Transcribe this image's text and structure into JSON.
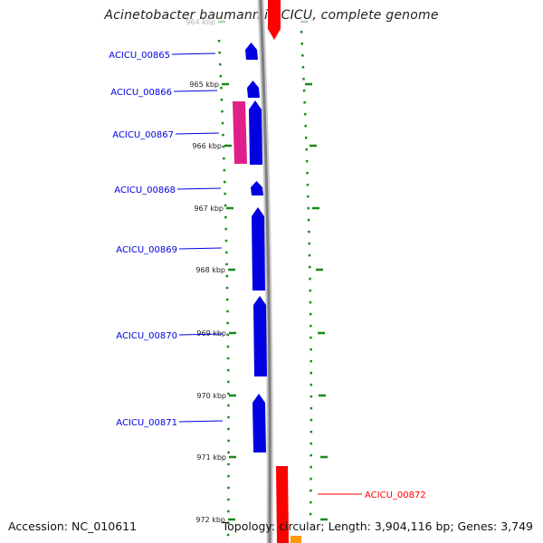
{
  "title": "Acinetobacter baumannii ACICU, complete genome",
  "footer": {
    "accession": "Accession: NC_010611",
    "topology": "Topology: circular; Length: 3,904,116 bp; Genes: 3,749"
  },
  "ticks": [
    {
      "label": "964 kbp"
    },
    {
      "label": "965 kbp"
    },
    {
      "label": "966 kbp"
    },
    {
      "label": "967 kbp"
    },
    {
      "label": "968 kbp"
    },
    {
      "label": "969 kbp"
    },
    {
      "label": "970 kbp"
    },
    {
      "label": "971 kbp"
    },
    {
      "label": "972 kbp"
    }
  ],
  "genes": [
    {
      "name": "ACICU_00865",
      "strand": "+",
      "color": "#0000e0"
    },
    {
      "name": "ACICU_00866",
      "strand": "+",
      "color": "#0000e0"
    },
    {
      "name": "ACICU_00867",
      "strand": "+",
      "color": "#0000e0"
    },
    {
      "name": "ACICU_00868",
      "strand": "+",
      "color": "#0000e0"
    },
    {
      "name": "ACICU_00869",
      "strand": "+",
      "color": "#0000e0"
    },
    {
      "name": "ACICU_00870",
      "strand": "+",
      "color": "#0000e0"
    },
    {
      "name": "ACICU_00871",
      "strand": "+",
      "color": "#0000e0"
    },
    {
      "name": "ACICU_00872",
      "strand": "-",
      "color": "#ff0000"
    }
  ],
  "colors": {
    "forward_cds": "#0000e0",
    "reverse_cds": "#ff0000",
    "rna_feature": "#e0208a",
    "other_feature": "#ff9900",
    "tick_marks": "#1a8a1a",
    "backbone": "#8a8a8a"
  }
}
